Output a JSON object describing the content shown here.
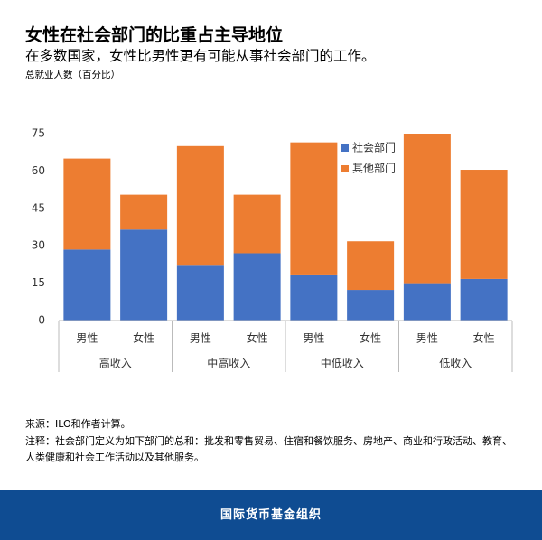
{
  "chart_data": {
    "type": "stacked_bar",
    "title": "女性在社会部门的比重占主导地位",
    "subtitle": "在多数国家，女性比男性更有可能从事社会部门的工作。",
    "ylabel": "总就业人数（百分比）",
    "categories": [
      "男性",
      "女性",
      "男性",
      "女性",
      "男性",
      "女性",
      "男性",
      "女性"
    ],
    "groups": [
      "高收入",
      "中高收入",
      "中低收入",
      "低收入"
    ],
    "series": [
      {
        "name": "社会部门",
        "color": "#4472c4",
        "values": [
          28.5,
          36.5,
          22,
          27,
          18.5,
          12.3,
          15,
          16.7
        ]
      },
      {
        "name": "其他部门",
        "color": "#ed7d31",
        "values": [
          36.5,
          14,
          48,
          23.5,
          53,
          19.5,
          60,
          43.8
        ]
      }
    ],
    "ylim": [
      0,
      75
    ],
    "yticks": [
      0,
      15,
      30,
      45,
      60,
      75
    ],
    "grid": false,
    "legend": "upper right"
  },
  "source": "来源：ILO和作者计算。",
  "note": "注释：社会部门定义为如下部门的总和：批发和零售贸易、住宿和餐饮服务、房地产、商业和行政活动、教育、人类健康和社会工作活动以及其他服务。",
  "footer": "国际货币基金组织"
}
